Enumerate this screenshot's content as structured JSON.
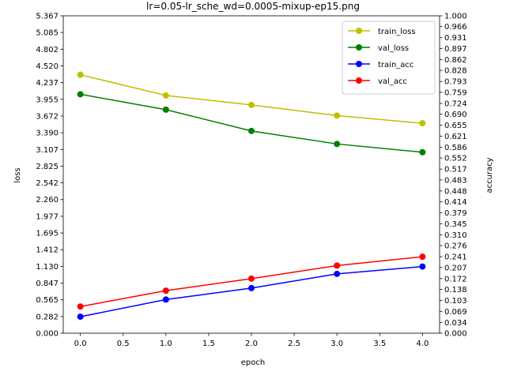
{
  "chart_data": {
    "type": "line",
    "title": "lr=0.05-lr_sche_wd=0.0005-mixup-ep15.png",
    "xlabel": "epoch",
    "ylabel_left": "loss",
    "ylabel_right": "accuracy",
    "x": [
      0,
      1,
      2,
      3,
      4
    ],
    "xlim": [
      -0.2,
      4.2
    ],
    "xticks": [
      "0.0",
      "0.5",
      "1.0",
      "1.5",
      "2.0",
      "2.5",
      "3.0",
      "3.5",
      "4.0"
    ],
    "ylim_left": [
      0,
      5.367
    ],
    "ylim_right": [
      0,
      1.0
    ],
    "yticks_left": [
      "0.000",
      "0.282",
      "0.565",
      "0.847",
      "1.130",
      "1.412",
      "1.695",
      "1.977",
      "2.260",
      "2.542",
      "2.825",
      "3.107",
      "3.390",
      "3.672",
      "3.955",
      "4.237",
      "4.520",
      "4.802",
      "5.085",
      "5.367"
    ],
    "yticks_right": [
      "0.000",
      "0.034",
      "0.069",
      "0.103",
      "0.138",
      "0.172",
      "0.207",
      "0.241",
      "0.276",
      "0.310",
      "0.345",
      "0.379",
      "0.414",
      "0.448",
      "0.483",
      "0.517",
      "0.552",
      "0.586",
      "0.621",
      "0.655",
      "0.690",
      "0.724",
      "0.759",
      "0.793",
      "0.828",
      "0.862",
      "0.897",
      "0.931",
      "0.966",
      "1.000"
    ],
    "legend_position": "top-right",
    "grid": false,
    "series": [
      {
        "name": "train_loss",
        "axis": "left",
        "color": "#bfbf00",
        "values": [
          4.37,
          4.02,
          3.86,
          3.68,
          3.55
        ]
      },
      {
        "name": "val_loss",
        "axis": "left",
        "color": "#008000",
        "values": [
          4.04,
          3.78,
          3.42,
          3.2,
          3.06
        ]
      },
      {
        "name": "train_acc",
        "axis": "right",
        "color": "#0000ff",
        "values": [
          0.052,
          0.106,
          0.142,
          0.187,
          0.21
        ]
      },
      {
        "name": "val_acc",
        "axis": "right",
        "color": "#ff0000",
        "values": [
          0.084,
          0.134,
          0.172,
          0.213,
          0.241
        ]
      }
    ]
  }
}
